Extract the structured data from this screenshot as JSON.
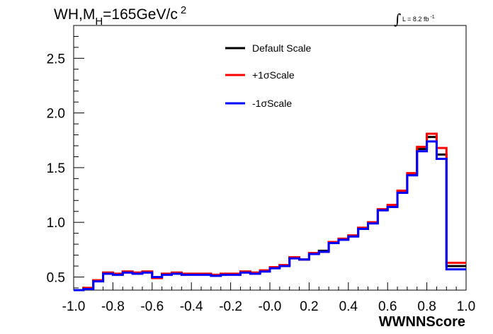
{
  "chart_data": {
    "type": "line",
    "title": "WH,M_H=165GeV/c^2",
    "title_parts": {
      "main": "WH,M",
      "sub": "H",
      "rest": "=165GeV/c",
      "sup": "2"
    },
    "xlabel": "WWNNScore",
    "ylabel": "",
    "lumi": {
      "symbol": "∫",
      "text": "L = 8.2 fb",
      "sup": "-1"
    },
    "xlim": [
      -1.0,
      1.0
    ],
    "ylim": [
      0.38,
      2.8
    ],
    "xticks": [
      -1.0,
      -0.8,
      -0.6,
      -0.4,
      -0.2,
      0.0,
      0.2,
      0.4,
      0.6,
      0.8,
      1.0
    ],
    "xtick_labels": [
      "-1.0",
      "-0.8",
      "-0.6",
      "-0.4",
      "-0.2",
      "-0.0",
      "0.2",
      "0.4",
      "0.6",
      "0.8",
      "1.0"
    ],
    "yticks": [
      0.5,
      1.0,
      1.5,
      2.0,
      2.5
    ],
    "ytick_labels": [
      "0.5",
      "1.0",
      "1.5",
      "2.0",
      "2.5"
    ],
    "bin_edges": [
      -1.0,
      -0.95,
      -0.9,
      -0.85,
      -0.8,
      -0.75,
      -0.7,
      -0.65,
      -0.6,
      -0.55,
      -0.5,
      -0.45,
      -0.4,
      -0.35,
      -0.3,
      -0.25,
      -0.2,
      -0.15,
      -0.1,
      -0.05,
      0.0,
      0.05,
      0.1,
      0.15,
      0.2,
      0.25,
      0.3,
      0.35,
      0.4,
      0.45,
      0.5,
      0.55,
      0.6,
      0.65,
      0.7,
      0.75,
      0.8,
      0.85,
      0.9,
      0.95,
      1.0
    ],
    "series": [
      {
        "name": "Default Scale",
        "color": "#000000",
        "values": [
          0.38,
          0.4,
          0.47,
          0.54,
          0.53,
          0.55,
          0.54,
          0.55,
          0.5,
          0.53,
          0.54,
          0.53,
          0.53,
          0.53,
          0.52,
          0.53,
          0.53,
          0.55,
          0.54,
          0.56,
          0.59,
          0.61,
          0.68,
          0.66,
          0.72,
          0.74,
          0.82,
          0.85,
          0.88,
          0.95,
          1.0,
          1.11,
          1.15,
          1.28,
          1.44,
          1.67,
          1.78,
          1.62,
          0.6,
          0.6
        ]
      },
      {
        "name": "+1σScale",
        "color": "#ff0000",
        "values": [
          0.38,
          0.4,
          0.47,
          0.54,
          0.53,
          0.55,
          0.54,
          0.55,
          0.49,
          0.53,
          0.54,
          0.53,
          0.53,
          0.53,
          0.52,
          0.53,
          0.53,
          0.55,
          0.54,
          0.56,
          0.59,
          0.61,
          0.68,
          0.66,
          0.72,
          0.73,
          0.82,
          0.85,
          0.88,
          0.95,
          1.0,
          1.12,
          1.16,
          1.29,
          1.45,
          1.69,
          1.81,
          1.68,
          0.63,
          0.63
        ]
      },
      {
        "name": "-1σScale",
        "color": "#0000ff",
        "values": [
          0.38,
          0.39,
          0.46,
          0.53,
          0.52,
          0.54,
          0.53,
          0.54,
          0.5,
          0.52,
          0.53,
          0.52,
          0.52,
          0.52,
          0.51,
          0.52,
          0.52,
          0.54,
          0.53,
          0.55,
          0.58,
          0.6,
          0.67,
          0.66,
          0.71,
          0.73,
          0.81,
          0.84,
          0.87,
          0.94,
          0.99,
          1.11,
          1.14,
          1.27,
          1.43,
          1.65,
          1.74,
          1.58,
          0.57,
          0.57
        ]
      }
    ],
    "legend_placement": "top-center",
    "grid": false
  }
}
